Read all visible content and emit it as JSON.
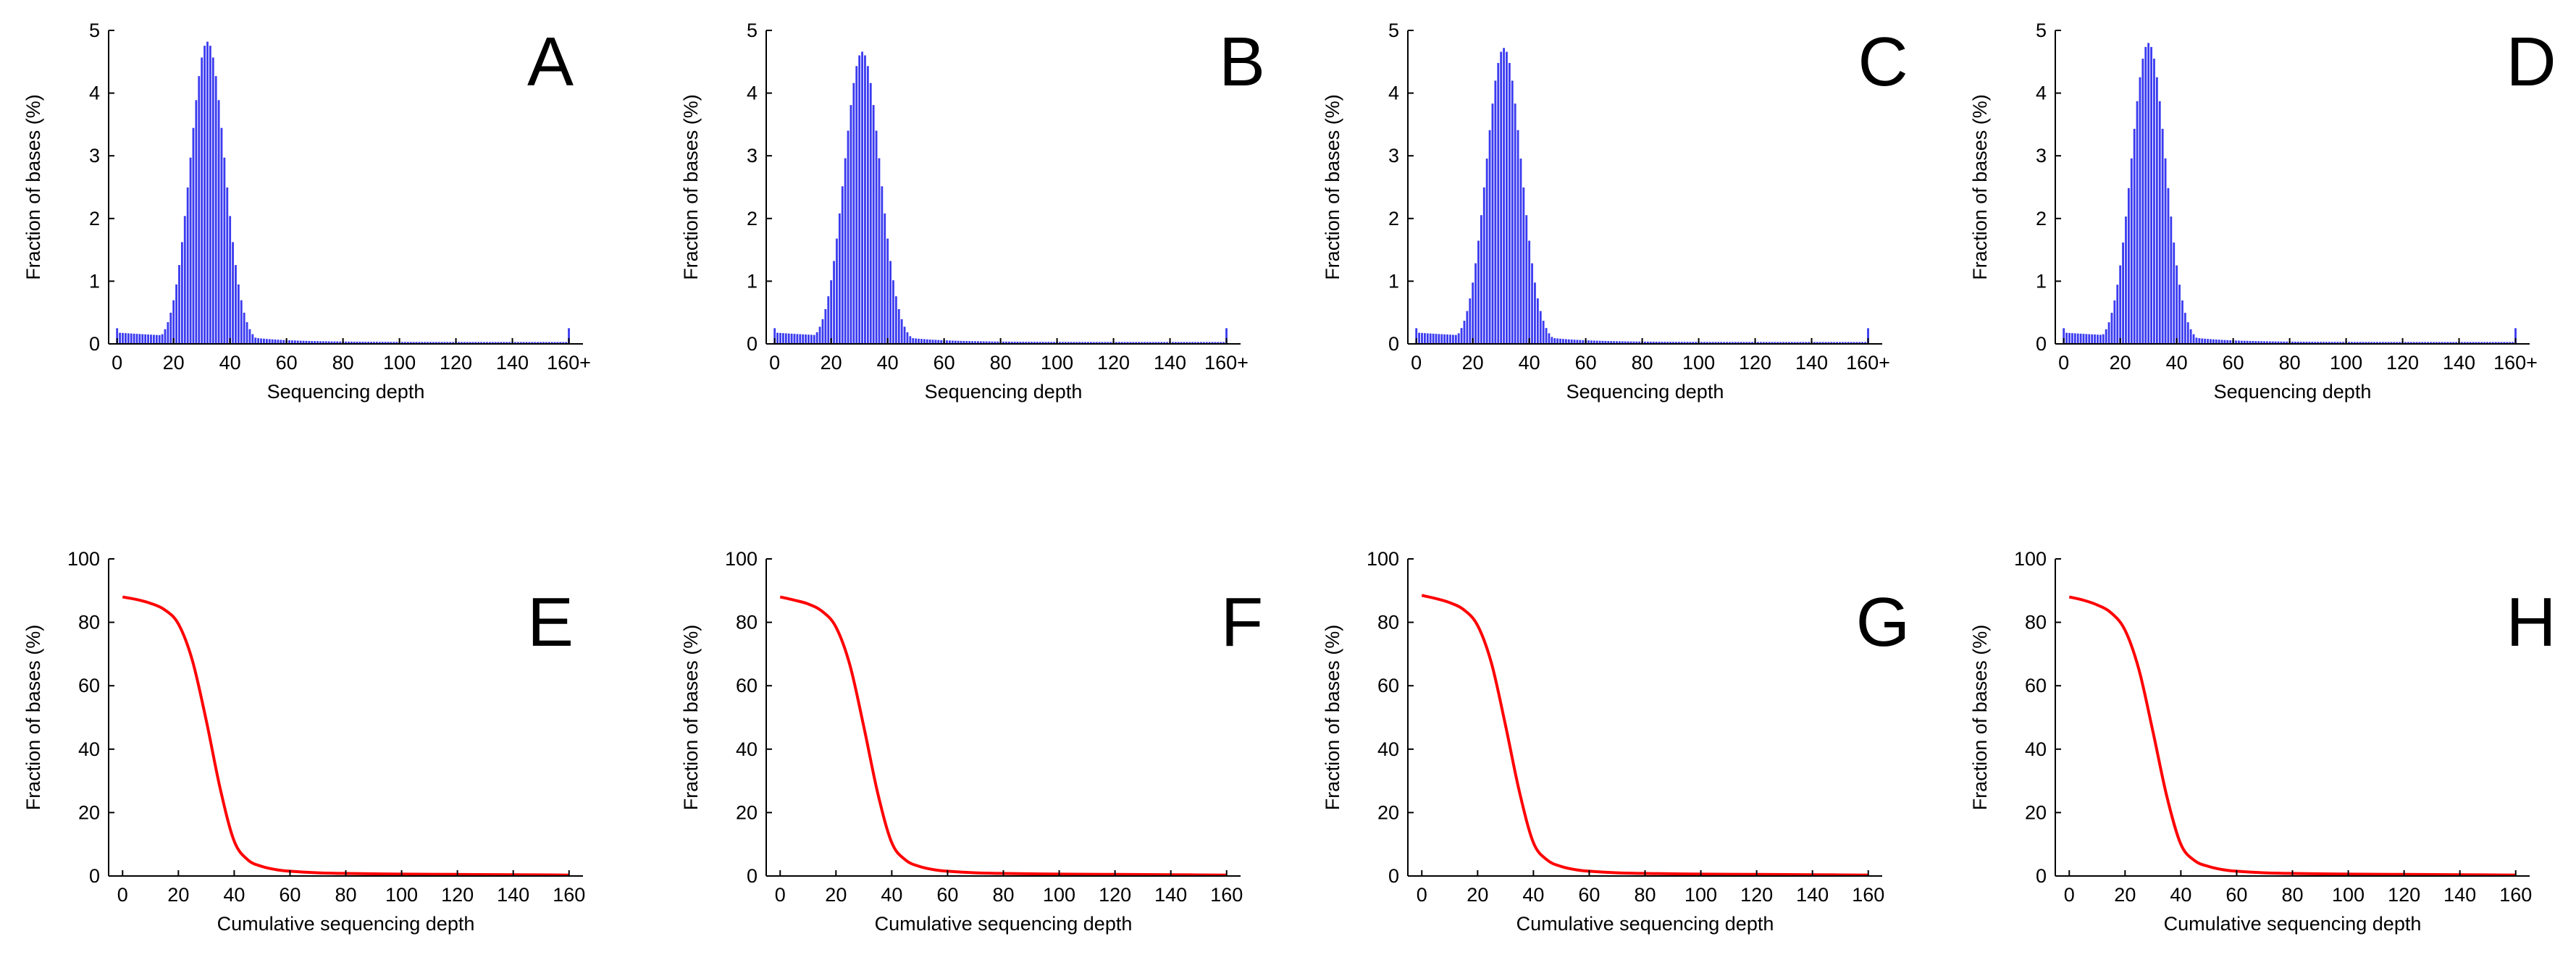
{
  "colors": {
    "hist_bar": "#3a3af0",
    "cdf_line": "#ff0000",
    "axis": "#000000",
    "background": "#ffffff"
  },
  "chart_data": [
    {
      "type": "bar",
      "panel": "A",
      "xlabel": "Sequencing depth",
      "ylabel": "Fraction of bases (%)",
      "xlim": [
        -3,
        165
      ],
      "ylim": [
        0,
        5
      ],
      "xticks": [
        "0",
        "20",
        "40",
        "60",
        "80",
        "100",
        "120",
        "140",
        "160+"
      ],
      "yticks": [
        "0",
        "1",
        "2",
        "3",
        "4",
        "5"
      ],
      "peak_depth": 32,
      "peak_value": 4.82,
      "sigma": 6.1,
      "tail_end": 0.03,
      "overflow_160plus": 0.25,
      "zero_bar": 0.25
    },
    {
      "type": "bar",
      "panel": "B",
      "xlabel": "Sequencing depth",
      "ylabel": "Fraction of bases (%)",
      "xlim": [
        -3,
        165
      ],
      "ylim": [
        0,
        5
      ],
      "xticks": [
        "0",
        "20",
        "40",
        "60",
        "80",
        "100",
        "120",
        "140",
        "160+"
      ],
      "yticks": [
        "0",
        "1",
        "2",
        "3",
        "4",
        "5"
      ],
      "peak_depth": 31,
      "peak_value": 4.66,
      "sigma": 6.3,
      "tail_end": 0.03,
      "overflow_160plus": 0.25,
      "zero_bar": 0.25
    },
    {
      "type": "bar",
      "panel": "C",
      "xlabel": "Sequencing depth",
      "ylabel": "Fraction of bases (%)",
      "xlim": [
        -3,
        165
      ],
      "ylim": [
        0,
        5
      ],
      "xticks": [
        "0",
        "20",
        "40",
        "60",
        "80",
        "100",
        "120",
        "140",
        "160+"
      ],
      "yticks": [
        "0",
        "1",
        "2",
        "3",
        "4",
        "5"
      ],
      "peak_depth": 31,
      "peak_value": 4.72,
      "sigma": 6.2,
      "tail_end": 0.03,
      "overflow_160plus": 0.25,
      "zero_bar": 0.25
    },
    {
      "type": "bar",
      "panel": "D",
      "xlabel": "Sequencing depth",
      "ylabel": "Fraction of bases (%)",
      "xlim": [
        -3,
        165
      ],
      "ylim": [
        0,
        5
      ],
      "xticks": [
        "0",
        "20",
        "40",
        "60",
        "80",
        "100",
        "120",
        "140",
        "160+"
      ],
      "yticks": [
        "0",
        "1",
        "2",
        "3",
        "4",
        "5"
      ],
      "peak_depth": 30,
      "peak_value": 4.8,
      "sigma": 6.1,
      "tail_end": 0.03,
      "overflow_160plus": 0.25,
      "zero_bar": 0.25
    },
    {
      "type": "line",
      "panel": "E",
      "xlabel": "Cumulative sequencing depth",
      "ylabel": "Fraction of bases (%)",
      "xlim": [
        -5,
        165
      ],
      "ylim": [
        0,
        100
      ],
      "xticks": [
        "0",
        "20",
        "40",
        "60",
        "80",
        "100",
        "120",
        "140",
        "160"
      ],
      "yticks": [
        "0",
        "20",
        "40",
        "60",
        "80",
        "100"
      ],
      "x": [
        0,
        5,
        10,
        15,
        20,
        25,
        30,
        35,
        40,
        45,
        50,
        55,
        60,
        70,
        80,
        100,
        120,
        140,
        160
      ],
      "y": [
        88,
        87.2,
        86,
        84,
        79.5,
        68,
        49,
        27.5,
        11,
        5,
        3,
        2,
        1.5,
        1,
        0.8,
        0.6,
        0.5,
        0.4,
        0.3
      ]
    },
    {
      "type": "line",
      "panel": "F",
      "xlabel": "Cumulative sequencing depth",
      "ylabel": "Fraction of bases (%)",
      "xlim": [
        -5,
        165
      ],
      "ylim": [
        0,
        100
      ],
      "xticks": [
        "0",
        "20",
        "40",
        "60",
        "80",
        "100",
        "120",
        "140",
        "160"
      ],
      "yticks": [
        "0",
        "20",
        "40",
        "60",
        "80",
        "100"
      ],
      "x": [
        0,
        5,
        10,
        15,
        20,
        25,
        30,
        35,
        40,
        45,
        50,
        55,
        60,
        70,
        80,
        100,
        120,
        140,
        160
      ],
      "y": [
        88,
        87,
        85.8,
        83.5,
        78.5,
        66.5,
        47,
        26,
        10.5,
        5,
        3,
        2,
        1.5,
        1,
        0.8,
        0.6,
        0.5,
        0.4,
        0.3
      ]
    },
    {
      "type": "line",
      "panel": "G",
      "xlabel": "Cumulative sequencing depth",
      "ylabel": "Fraction of bases (%)",
      "xlim": [
        -5,
        165
      ],
      "ylim": [
        0,
        100
      ],
      "xticks": [
        "0",
        "20",
        "40",
        "60",
        "80",
        "100",
        "120",
        "140",
        "160"
      ],
      "yticks": [
        "0",
        "20",
        "40",
        "60",
        "80",
        "100"
      ],
      "x": [
        0,
        5,
        10,
        15,
        20,
        25,
        30,
        35,
        40,
        45,
        50,
        55,
        60,
        70,
        80,
        100,
        120,
        140,
        160
      ],
      "y": [
        88.5,
        87.5,
        86.2,
        84,
        79,
        67,
        47.5,
        26.5,
        10.5,
        5,
        3,
        2,
        1.5,
        1,
        0.8,
        0.6,
        0.5,
        0.4,
        0.3
      ]
    },
    {
      "type": "line",
      "panel": "H",
      "xlabel": "Cumulative sequencing depth",
      "ylabel": "Fraction of bases (%)",
      "xlim": [
        -5,
        165
      ],
      "ylim": [
        0,
        100
      ],
      "xticks": [
        "0",
        "20",
        "40",
        "60",
        "80",
        "100",
        "120",
        "140",
        "160"
      ],
      "yticks": [
        "0",
        "20",
        "40",
        "60",
        "80",
        "100"
      ],
      "x": [
        0,
        5,
        10,
        15,
        20,
        25,
        30,
        35,
        40,
        45,
        50,
        55,
        60,
        70,
        80,
        100,
        120,
        140,
        160
      ],
      "y": [
        88,
        87,
        85.5,
        83,
        77.5,
        65,
        45.5,
        25,
        10,
        4.8,
        3,
        2,
        1.5,
        1,
        0.8,
        0.6,
        0.5,
        0.4,
        0.3
      ]
    }
  ]
}
